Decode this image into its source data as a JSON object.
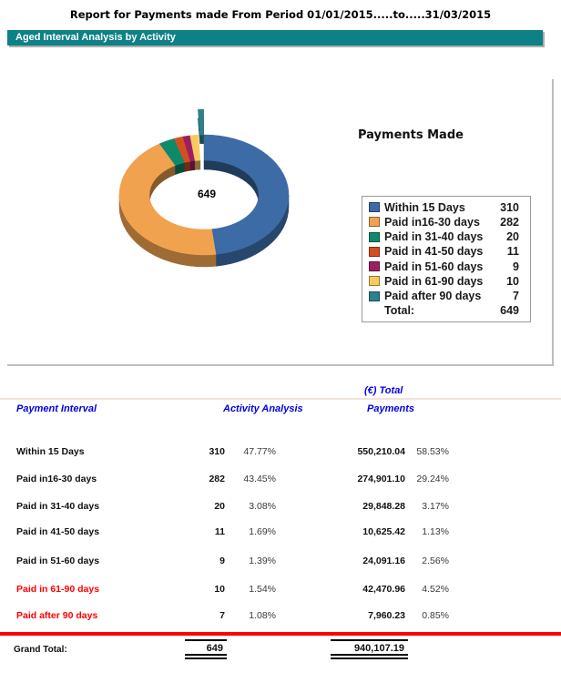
{
  "report": {
    "title": "Report for Payments made From Period 01/01/2015.....to.....31/03/2015",
    "banner": "Aged Interval Analysis by Activity"
  },
  "chart_data": {
    "type": "pie",
    "subtype": "3d-exploded-donut",
    "title": "Payments Made",
    "center_label": "649",
    "legend_position": "right",
    "exploded_segment": "Paid after 90 days",
    "categories": [
      "Within 15 Days",
      "Paid in16-30 days",
      "Paid in 31-40 days",
      "Paid in 41-50 days",
      "Paid in 51-60 days",
      "Paid in 61-90 days",
      "Paid after 90 days"
    ],
    "values": [
      310,
      282,
      20,
      11,
      9,
      10,
      7
    ],
    "colors": [
      "#3c6ba6",
      "#f1a24f",
      "#0d8a6a",
      "#d44f1e",
      "#9d1f62",
      "#f9c961",
      "#2d7f8b"
    ],
    "legend_total_label": "Total:",
    "legend_total": "649"
  },
  "table": {
    "headers": {
      "interval": "Payment Interval",
      "activity": "Activity Analysis",
      "payments_pre": "(€) Total",
      "payments": "Payments"
    },
    "rows": [
      {
        "label": "Within 15 Days",
        "count": "310",
        "activity_pct": "47.77%",
        "amount": "550,210.04",
        "amount_pct": "58.53%",
        "highlight": false
      },
      {
        "label": "Paid in16-30 days",
        "count": "282",
        "activity_pct": "43.45%",
        "amount": "274,901.10",
        "amount_pct": "29.24%",
        "highlight": false
      },
      {
        "label": "Paid in 31-40 days",
        "count": "20",
        "activity_pct": "3.08%",
        "amount": "29,848.28",
        "amount_pct": "3.17%",
        "highlight": false
      },
      {
        "label": "Paid in 41-50 days",
        "count": "11",
        "activity_pct": "1.69%",
        "amount": "10,625.42",
        "amount_pct": "1.13%",
        "highlight": false
      },
      {
        "label": "Paid in 51-60 days",
        "count": "9",
        "activity_pct": "1.39%",
        "amount": "24,091.16",
        "amount_pct": "2.56%",
        "highlight": false
      },
      {
        "label": "Paid in 61-90 days",
        "count": "10",
        "activity_pct": "1.54%",
        "amount": "42,470.96",
        "amount_pct": "4.52%",
        "highlight": true
      },
      {
        "label": "Paid after 90 days",
        "count": "7",
        "activity_pct": "1.08%",
        "amount": "7,960.23",
        "amount_pct": "0.85%",
        "highlight": true
      }
    ],
    "grand_total": {
      "label": "Grand Total:",
      "count": "649",
      "amount": "940,107.19"
    }
  },
  "colors": {
    "banner_bg": "#0d8186",
    "header_text": "#0000e6",
    "highlight_text": "#ff0000",
    "divider_red": "#ff0000"
  }
}
